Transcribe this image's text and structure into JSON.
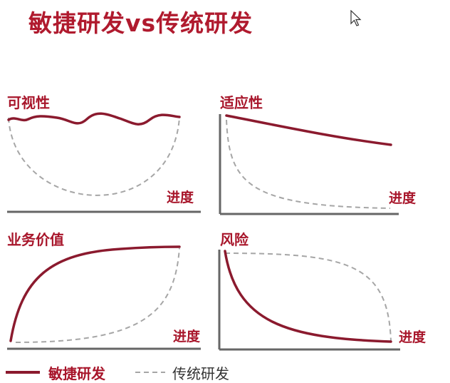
{
  "title": "敏捷研发vs传统研发",
  "colors": {
    "agile": "#8b1a2e",
    "traditional": "#a6a6a6",
    "axis": "#666666",
    "title": "#b01a2e"
  },
  "panels": [
    {
      "label": "可视性",
      "x_label": "进度"
    },
    {
      "label": "适应性",
      "x_label": "进度"
    },
    {
      "label": "业务价值",
      "x_label": "进度"
    },
    {
      "label": "风险",
      "x_label": "进度"
    }
  ],
  "legend": {
    "agile": "敏捷研发",
    "traditional": "传统研发"
  },
  "icons": [
    "cursor-arrow-icon"
  ]
}
